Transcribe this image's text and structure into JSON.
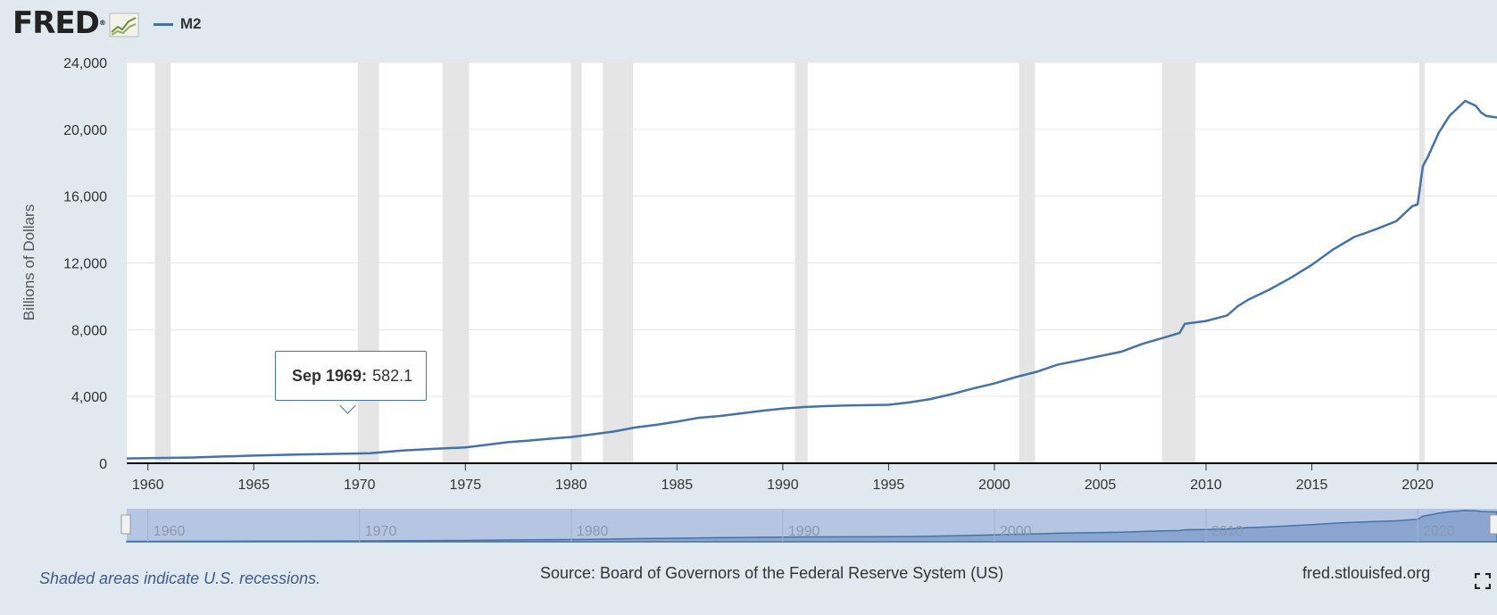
{
  "header": {
    "logo_text": "FRED",
    "logo_mark": "®",
    "logo_icon": "line-chart-icon",
    "legend_label": "M2",
    "legend_color": "#4572a7"
  },
  "tooltip": {
    "date": "Sep 1969:",
    "value": "582.1"
  },
  "footer": {
    "note": "Shaded areas indicate U.S. recessions.",
    "source": "Source: Board of Governors of the Federal Reserve System (US)",
    "site": "fred.stlouisfed.org",
    "fullscreen_icon": "fullscreen-icon"
  },
  "chart_data": {
    "type": "line",
    "title": "",
    "xlabel": "",
    "ylabel": "Billions of Dollars",
    "xlim": [
      1959.0,
      2023.75
    ],
    "ylim": [
      0,
      24000
    ],
    "yticks": [
      0,
      4000,
      8000,
      12000,
      16000,
      20000,
      24000
    ],
    "yticklabels": [
      "0",
      "4,000",
      "8,000",
      "12,000",
      "16,000",
      "20,000",
      "24,000"
    ],
    "xticks": [
      1960,
      1965,
      1970,
      1975,
      1980,
      1985,
      1990,
      1995,
      2000,
      2005,
      2010,
      2015,
      2020
    ],
    "xticklabels": [
      "1960",
      "1965",
      "1970",
      "1975",
      "1980",
      "1985",
      "1990",
      "1995",
      "2000",
      "2005",
      "2010",
      "2015",
      "2020"
    ],
    "navigator_ticklabels": [
      "1960",
      "1970",
      "1980",
      "1990",
      "2000",
      "2010",
      "2020"
    ],
    "grid": true,
    "colors": {
      "line": "#4572a7",
      "recession": "#e5e5e5",
      "navigator": "#b5c6e2"
    },
    "recessions": [
      [
        1960.33,
        1961.08
      ],
      [
        1969.92,
        1970.92
      ],
      [
        1973.92,
        1975.17
      ],
      [
        1980.0,
        1980.5
      ],
      [
        1981.5,
        1982.92
      ],
      [
        1990.58,
        1991.17
      ],
      [
        2001.17,
        2001.92
      ],
      [
        2007.92,
        2009.5
      ],
      [
        2020.08,
        2020.33
      ]
    ],
    "series": [
      {
        "name": "M2",
        "x": [
          1959.0,
          1960.0,
          1962.0,
          1965.0,
          1967.0,
          1969.75,
          1970.5,
          1972.0,
          1973.5,
          1975.0,
          1976.0,
          1977.0,
          1978.0,
          1979.0,
          1980.0,
          1981.0,
          1982.0,
          1983.0,
          1984.0,
          1985.0,
          1986.0,
          1987.0,
          1988.0,
          1989.0,
          1990.0,
          1991.0,
          1992.0,
          1993.0,
          1994.0,
          1995.0,
          1996.0,
          1997.0,
          1998.0,
          1999.0,
          2000.0,
          2001.0,
          2002.0,
          2003.0,
          2004.0,
          2005.0,
          2006.0,
          2007.0,
          2008.0,
          2008.75,
          2009.0,
          2010.0,
          2011.0,
          2011.5,
          2012.0,
          2013.0,
          2014.0,
          2015.0,
          2016.0,
          2017.0,
          2018.0,
          2019.0,
          2019.75,
          2020.0,
          2020.25,
          2020.5,
          2021.0,
          2021.5,
          2022.0,
          2022.25,
          2022.75,
          2023.0,
          2023.25,
          2023.75
        ],
        "y": [
          290,
          310,
          340,
          460,
          520,
          582.1,
          600,
          760,
          860,
          950,
          1100,
          1260,
          1360,
          1470,
          1570,
          1730,
          1900,
          2140,
          2300,
          2490,
          2720,
          2830,
          2980,
          3140,
          3270,
          3370,
          3420,
          3460,
          3480,
          3500,
          3650,
          3850,
          4140,
          4480,
          4780,
          5160,
          5480,
          5910,
          6160,
          6420,
          6680,
          7150,
          7520,
          7800,
          8350,
          8520,
          8850,
          9400,
          9800,
          10400,
          11100,
          11880,
          12800,
          13550,
          14000,
          14500,
          15400,
          15500,
          17800,
          18400,
          19800,
          20800,
          21400,
          21700,
          21400,
          21000,
          20800,
          20700
        ]
      }
    ]
  }
}
